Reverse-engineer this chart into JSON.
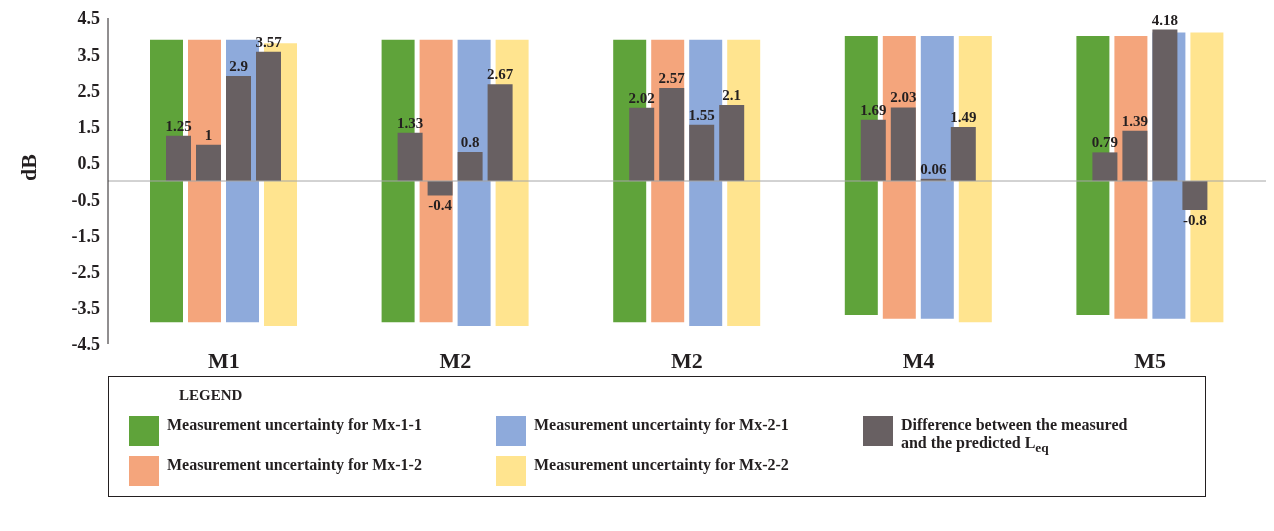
{
  "chart_data": {
    "type": "bar",
    "ylabel": "dB",
    "categories": [
      "M1",
      "M2",
      "M2",
      "M4",
      "M5"
    ],
    "series": [
      {
        "name": "Measurement uncertainty for Mx-1-1",
        "color": "#5fa33a",
        "base": [
          -3.9,
          -3.9,
          -3.9,
          -3.7,
          -3.7
        ],
        "values": [
          7.8,
          7.8,
          7.8,
          7.7,
          7.7
        ]
      },
      {
        "name": "Measurement uncertainty for Mx-1-2",
        "color": "#f4a57c",
        "base": [
          -3.9,
          -3.9,
          -3.9,
          -3.8,
          -3.8
        ],
        "values": [
          7.8,
          7.8,
          7.8,
          7.8,
          7.8
        ]
      },
      {
        "name": "Measurement uncertainty for Mx-2-1",
        "color": "#8eaadb",
        "base": [
          -3.9,
          -4.0,
          -4.0,
          -3.8,
          -3.8
        ],
        "values": [
          7.8,
          7.9,
          7.9,
          7.8,
          7.9
        ]
      },
      {
        "name": "Measurement uncertainty for Mx-2-2",
        "color": "#ffe48f",
        "base": [
          -4.0,
          -4.0,
          -4.0,
          -3.9,
          -3.9
        ],
        "values": [
          7.8,
          7.9,
          7.9,
          7.9,
          8.0
        ]
      },
      {
        "name": "Difference between the measured and the predicted L$_{eq}$",
        "color": "#686062",
        "values": [
          1.25,
          1.33,
          2.02,
          1.69,
          0.79
        ],
        "value_labels": [
          "1.25",
          "1.33",
          "2.02",
          "1.69",
          "0.79"
        ]
      },
      {
        "color": "#686062",
        "values": [
          1,
          -0.4,
          2.57,
          2.03,
          1.39
        ],
        "value_labels": [
          "1",
          "-0.4",
          "2.57",
          "2.03",
          "1.39"
        ]
      },
      {
        "color": "#686062",
        "values": [
          2.9,
          0.8,
          1.55,
          0.06,
          4.18
        ],
        "value_labels": [
          "2.9",
          "0.8",
          "1.55",
          "0.06",
          "4.18"
        ]
      },
      {
        "color": "#686062",
        "values": [
          3.57,
          2.67,
          2.1,
          1.49,
          -0.8
        ],
        "value_labels": [
          "3.57",
          "2.67",
          "2.1",
          "1.49",
          "-0.8"
        ]
      }
    ],
    "ylim": [
      -4.5,
      4.5
    ],
    "yticks": [
      -4.5,
      -3.5,
      -2.5,
      -1.5,
      -0.5,
      0.5,
      1.5,
      2.5,
      3.5,
      4.5
    ],
    "ref_lines": [
      {
        "axis": "y",
        "value": 0,
        "color": "#a6a6a6"
      }
    ],
    "legend": "bottom",
    "legend_title": "LEGEND"
  }
}
